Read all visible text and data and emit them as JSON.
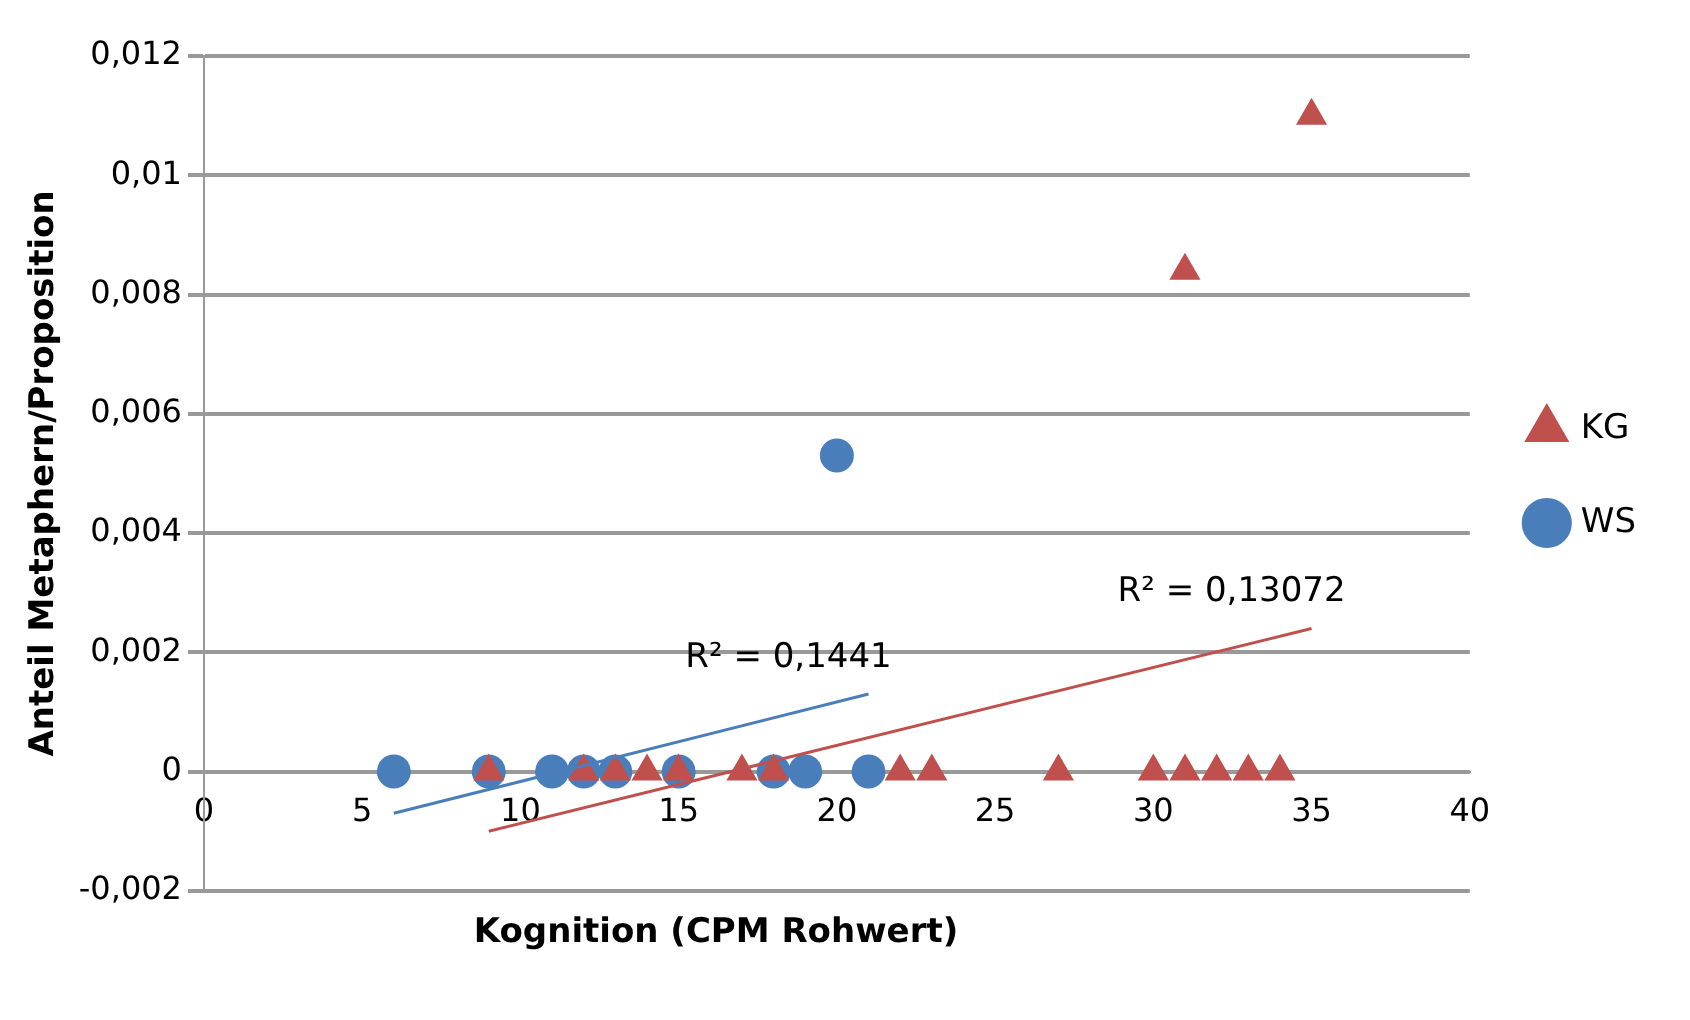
{
  "chart_data": {
    "type": "scatter",
    "xlabel": "Kognition (CPM Rohwert)",
    "ylabel": "Anteil Metaphern/Proposition",
    "xlim": [
      0,
      40
    ],
    "xticks": [
      0,
      5,
      10,
      15,
      20,
      25,
      30,
      35,
      40
    ],
    "ylim": [
      -0.002,
      0.012
    ],
    "yticks": [
      {
        "value": -0.002,
        "label": "-0,002"
      },
      {
        "value": 0,
        "label": "0"
      },
      {
        "value": 0.002,
        "label": "0,002"
      },
      {
        "value": 0.004,
        "label": "0,004"
      },
      {
        "value": 0.006,
        "label": "0,006"
      },
      {
        "value": 0.008,
        "label": "0,008"
      },
      {
        "value": 0.01,
        "label": "0,01"
      },
      {
        "value": 0.012,
        "label": "0,012"
      }
    ],
    "grid": "y",
    "legend": "right",
    "series": [
      {
        "name": "WS",
        "color": "#4a7ebb",
        "marker": "circle",
        "x": [
          6,
          9,
          11,
          12,
          13,
          15,
          18,
          19,
          20,
          21
        ],
        "values": [
          0,
          0,
          0,
          0,
          0,
          0,
          0,
          0,
          0.0053,
          0
        ]
      },
      {
        "name": "KG",
        "color": "#c0504d",
        "marker": "triangle",
        "x": [
          9,
          12,
          13,
          14,
          15,
          17,
          18,
          22,
          23,
          27,
          30,
          31,
          31,
          32,
          33,
          34,
          35
        ],
        "values": [
          0,
          0,
          0,
          0,
          0,
          0,
          0,
          0,
          0,
          0,
          0,
          0,
          0.0084,
          0,
          0,
          0,
          0.011
        ]
      },
      {
        "type": "line",
        "color": "#4a7ebb",
        "marker": "none",
        "x": [
          6,
          21
        ],
        "values": [
          -0.0007,
          0.0013
        ]
      },
      {
        "type": "line",
        "color": "#c0504d",
        "marker": "none",
        "x": [
          9,
          35
        ],
        "values": [
          -0.001,
          0.0024
        ]
      }
    ],
    "annotations": [
      "R² = 0,1441",
      "R² = 0,13072"
    ]
  }
}
